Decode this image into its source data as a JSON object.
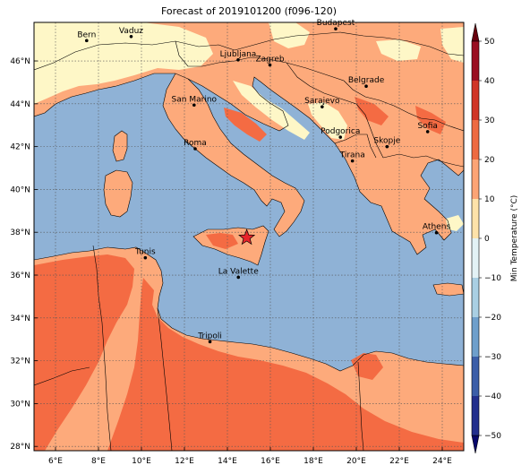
{
  "title": "Forecast of 2019101200 (f096-120)",
  "lon_ticks": [
    "6°E",
    "8°E",
    "10°E",
    "12°E",
    "14°E",
    "16°E",
    "18°E",
    "20°E",
    "22°E",
    "24°E"
  ],
  "lat_ticks": [
    "46°N",
    "44°N",
    "42°N",
    "40°N",
    "38°N",
    "36°N",
    "34°N",
    "32°N",
    "30°N",
    "28°N"
  ],
  "colorbar": {
    "label": "Min Temperature (°C)",
    "ticks": [
      "50",
      "40",
      "30",
      "20",
      "10",
      "0",
      "−10",
      "−20",
      "−30",
      "−40",
      "−50"
    ]
  },
  "cities": [
    {
      "name": "Bern",
      "lon": 7.45,
      "lat": 46.95
    },
    {
      "name": "Vaduz",
      "lon": 9.52,
      "lat": 47.14
    },
    {
      "name": "Budapest",
      "lon": 19.04,
      "lat": 47.5
    },
    {
      "name": "Ljubljana",
      "lon": 14.5,
      "lat": 46.05
    },
    {
      "name": "Zagreb",
      "lon": 15.98,
      "lat": 45.81
    },
    {
      "name": "Belgrade",
      "lon": 20.46,
      "lat": 44.82
    },
    {
      "name": "San Marino",
      "lon": 12.45,
      "lat": 43.94
    },
    {
      "name": "Sarajevo",
      "lon": 18.41,
      "lat": 43.86
    },
    {
      "name": "Sofia",
      "lon": 23.32,
      "lat": 42.7
    },
    {
      "name": "Podgorica",
      "lon": 19.26,
      "lat": 42.44
    },
    {
      "name": "Skopje",
      "lon": 21.43,
      "lat": 42.0
    },
    {
      "name": "Roma",
      "lon": 12.5,
      "lat": 41.9
    },
    {
      "name": "Tirana",
      "lon": 19.82,
      "lat": 41.33
    },
    {
      "name": "Athens",
      "lon": 23.73,
      "lat": 37.98
    },
    {
      "name": "Tunis",
      "lon": 10.18,
      "lat": 36.81
    },
    {
      "name": "La Valette",
      "lon": 14.51,
      "lat": 35.9
    },
    {
      "name": "Tripoli",
      "lon": 13.19,
      "lat": 32.89
    }
  ],
  "marker": {
    "symbol": "star",
    "lon": 14.9,
    "lat": 37.75,
    "color": "#e8232a"
  },
  "colors": {
    "sea": "#8fb2d6",
    "warm20": "#fdaa7b",
    "warm25": "#f46b43",
    "cool10": "#fef7c7",
    "land_pale": "#fdf4cc",
    "border": "#000000"
  }
}
